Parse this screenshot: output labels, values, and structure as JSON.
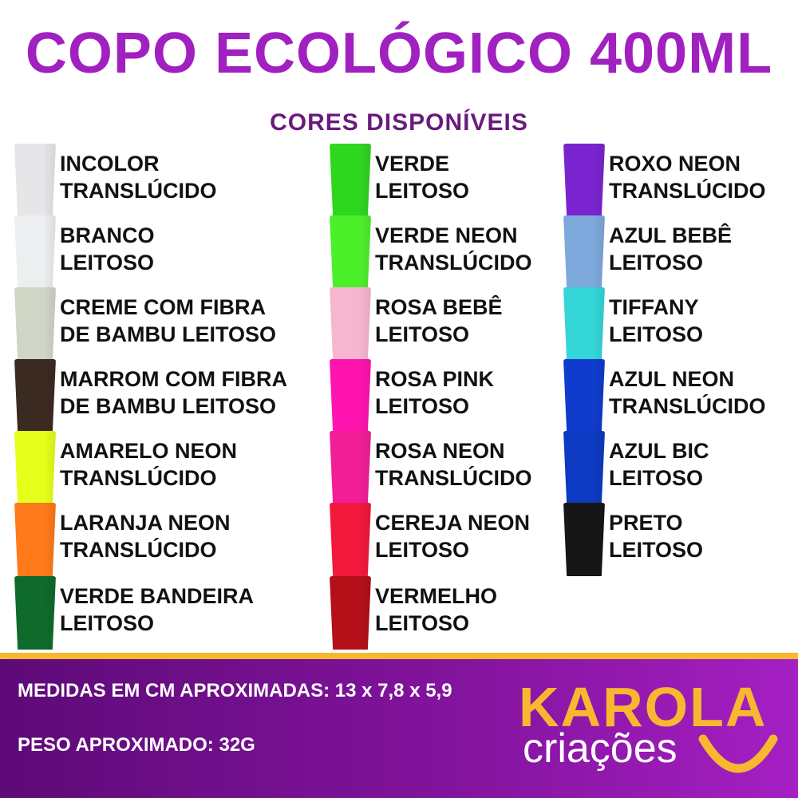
{
  "title": "COPO ECOLÓGICO 400ML",
  "subtitle": "CORES DISPONÍVEIS",
  "columns": [
    [
      {
        "lines": [
          "INCOLOR",
          "TRANSLÚCIDO"
        ],
        "color": "#e6e6e8"
      },
      {
        "lines": [
          "BRANCO",
          "LEITOSO"
        ],
        "color": "#eceef0"
      },
      {
        "lines": [
          "CREME COM FIBRA",
          "DE BAMBU LEITOSO"
        ],
        "color": "#cfd6c6"
      },
      {
        "lines": [
          "MARROM COM FIBRA",
          "DE BAMBU LEITOSO"
        ],
        "color": "#3b2a22"
      },
      {
        "lines": [
          "AMARELO NEON",
          "TRANSLÚCIDO"
        ],
        "color": "#e5ff1a"
      },
      {
        "lines": [
          "LARANJA NEON",
          "TRANSLÚCIDO"
        ],
        "color": "#ff7a1a"
      },
      {
        "lines": [
          "VERDE BANDEIRA",
          "LEITOSO"
        ],
        "color": "#0e6b2c"
      }
    ],
    [
      {
        "lines": [
          "VERDE",
          "LEITOSO"
        ],
        "color": "#2fd61e"
      },
      {
        "lines": [
          "VERDE NEON",
          "TRANSLÚCIDO"
        ],
        "color": "#4cf02a"
      },
      {
        "lines": [
          "ROSA BEBÊ",
          "LEITOSO"
        ],
        "color": "#f7b6d0"
      },
      {
        "lines": [
          "ROSA PINK",
          "LEITOSO"
        ],
        "color": "#ff14b0"
      },
      {
        "lines": [
          "ROSA NEON",
          "TRANSLÚCIDO"
        ],
        "color": "#f21e96"
      },
      {
        "lines": [
          "CEREJA NEON",
          "LEITOSO"
        ],
        "color": "#f2193c"
      },
      {
        "lines": [
          "VERMELHO",
          "LEITOSO"
        ],
        "color": "#b3101a"
      }
    ],
    [
      {
        "lines": [
          "ROXO NEON",
          "TRANSLÚCIDO"
        ],
        "color": "#7a24d0"
      },
      {
        "lines": [
          "AZUL BEBÊ",
          "LEITOSO"
        ],
        "color": "#7ea9dc"
      },
      {
        "lines": [
          "TIFFANY",
          "LEITOSO"
        ],
        "color": "#34d6d8"
      },
      {
        "lines": [
          "AZUL NEON",
          "TRANSLÚCIDO"
        ],
        "color": "#0f3ccc"
      },
      {
        "lines": [
          "AZUL BIC",
          "LEITOSO"
        ],
        "color": "#0c3ac2"
      },
      {
        "lines": [
          "PRETO",
          "LEITOSO"
        ],
        "color": "#161616"
      }
    ]
  ],
  "info": {
    "measures": "MEDIDAS EM CM APROXIMADAS: 13 x 7,8 x 5,9",
    "weight": "PESO APROXIMADO: 32G"
  },
  "logo": {
    "name": "KAROLA",
    "tagline": "criações",
    "color": "#f7b731"
  }
}
